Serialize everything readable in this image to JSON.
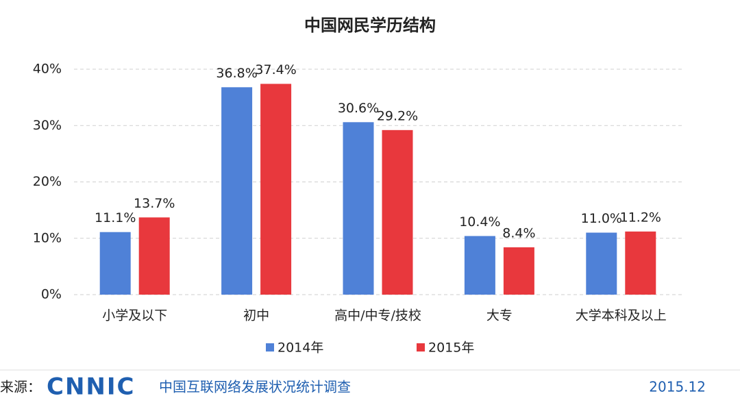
{
  "chart_data": {
    "type": "bar",
    "title": "中国网民学历结构",
    "categories": [
      "小学及以下",
      "初中",
      "高中/中专/技校",
      "大专",
      "大学本科及以上"
    ],
    "series": [
      {
        "name": "2014年",
        "color": "#4f81d7",
        "values": [
          11.1,
          36.8,
          30.6,
          10.4,
          11.0
        ],
        "value_labels": [
          "11.1%",
          "36.8%",
          "30.6%",
          "10.4%",
          "11.0%"
        ]
      },
      {
        "name": "2015年",
        "color": "#e8383d",
        "values": [
          13.7,
          37.4,
          29.2,
          8.4,
          11.2
        ],
        "value_labels": [
          "13.7%",
          "37.4%",
          "29.2%",
          "8.4%",
          "11.2%"
        ]
      }
    ],
    "ylim": [
      0,
      40
    ],
    "yticks": [
      {
        "value": 0,
        "label": "0%"
      },
      {
        "value": 10,
        "label": "10%"
      },
      {
        "value": 20,
        "label": "20%"
      },
      {
        "value": 30,
        "label": "30%"
      },
      {
        "value": 40,
        "label": "40%"
      }
    ],
    "grid": true,
    "legend": "bottom"
  },
  "footer": {
    "source_label": "来源：",
    "logo": "CNNIC",
    "source": "中国互联网络发展状况统计调查",
    "date": "2015.12"
  }
}
